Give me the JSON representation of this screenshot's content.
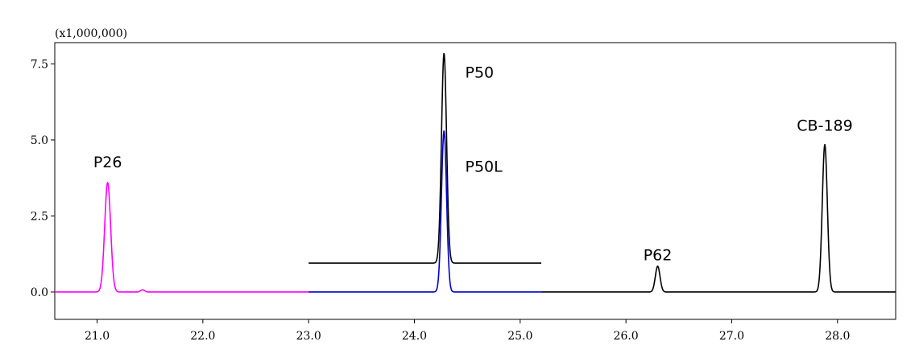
{
  "chart_data": {
    "type": "line",
    "multiplier_label": "(x1,000,000)",
    "xlim": [
      20.6,
      28.55
    ],
    "ylim": [
      -0.9,
      8.2
    ],
    "x_ticks": [
      {
        "value": 21.0,
        "label": "21.0"
      },
      {
        "value": 22.0,
        "label": "22.0"
      },
      {
        "value": 23.0,
        "label": "23.0"
      },
      {
        "value": 24.0,
        "label": "24.0"
      },
      {
        "value": 25.0,
        "label": "25.0"
      },
      {
        "value": 26.0,
        "label": "26.0"
      },
      {
        "value": 27.0,
        "label": "27.0"
      },
      {
        "value": 28.0,
        "label": "28.0"
      }
    ],
    "y_ticks": [
      {
        "value": 0.0,
        "label": "0.0"
      },
      {
        "value": 2.5,
        "label": "2.5"
      },
      {
        "value": 5.0,
        "label": "5.0"
      },
      {
        "value": 7.5,
        "label": "7.5"
      }
    ],
    "grid": false,
    "series": [
      {
        "color": "#ff00ff",
        "x_range": [
          20.6,
          23.0
        ],
        "baseline": 0.0,
        "peaks": [
          {
            "x": 21.1,
            "height": 3.6,
            "width": 0.028
          },
          {
            "x": 21.43,
            "height": 0.07,
            "width": 0.02
          }
        ]
      },
      {
        "color": "#0000cc",
        "x_range": [
          23.0,
          25.2
        ],
        "baseline": 0.0,
        "peaks": [
          {
            "x": 24.28,
            "height": 5.3,
            "width": 0.024
          }
        ]
      },
      {
        "color": "#000000",
        "x_range": [
          23.0,
          25.2
        ],
        "baseline": 0.95,
        "peaks": [
          {
            "x": 24.28,
            "height": 6.9,
            "width": 0.024
          }
        ]
      },
      {
        "color": "#000000",
        "x_range": [
          25.2,
          28.55
        ],
        "baseline": 0.0,
        "peaks": [
          {
            "x": 26.3,
            "height": 0.85,
            "width": 0.022
          },
          {
            "x": 27.88,
            "height": 4.85,
            "width": 0.024
          }
        ]
      }
    ],
    "annotations": [
      {
        "text": "P26",
        "x": 21.1,
        "y": 4.1
      },
      {
        "text": "P50",
        "x": 24.48,
        "y": 7.05
      },
      {
        "text": "P50L",
        "x": 24.48,
        "y": 3.95
      },
      {
        "text": "P62",
        "x": 26.3,
        "y": 1.05
      },
      {
        "text": "CB-189",
        "x": 27.88,
        "y": 5.3
      }
    ]
  }
}
